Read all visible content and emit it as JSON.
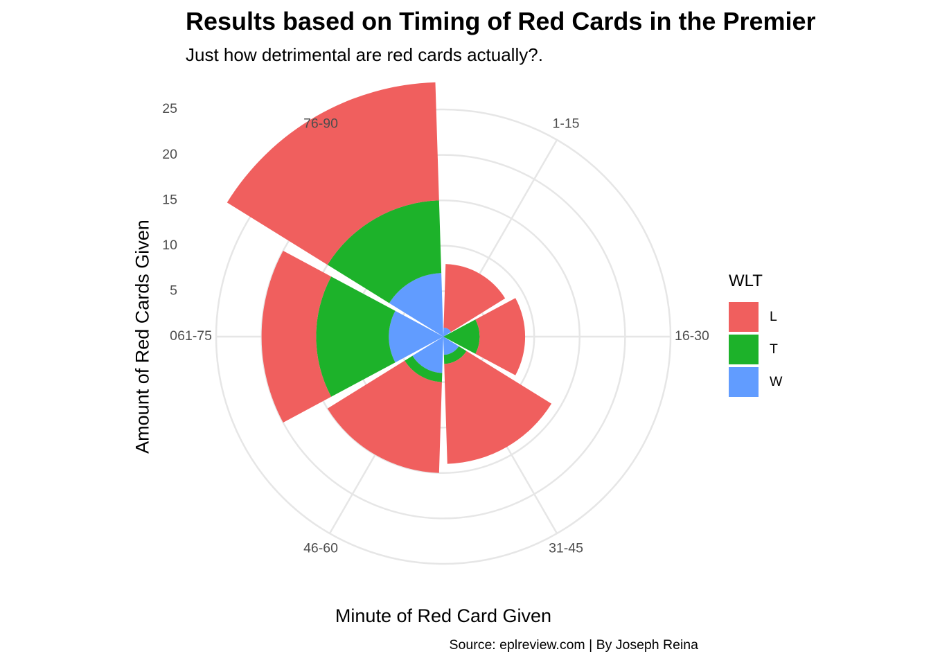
{
  "chart_data": {
    "type": "polar-bar",
    "title": "Results based on Timing of Red Cards in the Premier",
    "subtitle": "Just how detrimental are red cards actually?.",
    "xlabel": "Minute of Red Card Given",
    "ylabel": "Amount of Red Cards Given",
    "caption": "Source: eplreview.com | By Joseph Reina",
    "categories": [
      "1-15",
      "16-30",
      "31-45",
      "46-60",
      "61-75",
      "76-90"
    ],
    "r_ticks": [
      0,
      5,
      10,
      15,
      20,
      25
    ],
    "rlim": [
      0,
      25
    ],
    "stacked": true,
    "legend_title": "WLT",
    "legend_position": "right",
    "grid": true,
    "series": [
      {
        "name": "W",
        "values": [
          1,
          0,
          2,
          4,
          6,
          7
        ],
        "color": "#619CFF"
      },
      {
        "name": "T",
        "values": [
          0,
          4,
          1,
          1,
          8,
          8
        ],
        "color": "#1DB22A"
      },
      {
        "name": "L",
        "values": [
          7,
          5,
          11,
          10,
          6,
          13
        ],
        "color": "#F05F5E"
      }
    ]
  }
}
